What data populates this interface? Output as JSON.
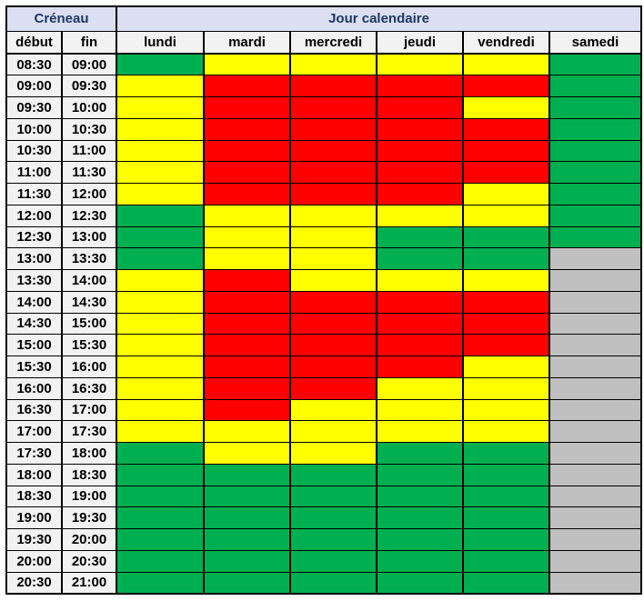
{
  "header": {
    "creneau": "Créneau",
    "jour_calendaire": "Jour calendaire",
    "debut": "début",
    "fin": "fin",
    "days": [
      "lundi",
      "mardi",
      "mercredi",
      "jeudi",
      "vendredi",
      "samedi"
    ]
  },
  "legend_colors": {
    "green": "#00B050",
    "yellow": "#FFFF00",
    "red": "#FF0000",
    "gray": "#C0C0C0"
  },
  "ui_colors": {
    "header_bg": "#DBDFF1",
    "header_text": "#1F3864",
    "subheader_bg": "#F2F2F2",
    "time_bg": "#F2F2F2",
    "border": "#000000"
  },
  "rows": [
    {
      "start": "08:30",
      "end": "09:00",
      "days": [
        "green",
        "yellow",
        "yellow",
        "yellow",
        "yellow",
        "green"
      ]
    },
    {
      "start": "09:00",
      "end": "09:30",
      "days": [
        "yellow",
        "red",
        "red",
        "red",
        "red",
        "green"
      ]
    },
    {
      "start": "09:30",
      "end": "10:00",
      "days": [
        "yellow",
        "red",
        "red",
        "red",
        "yellow",
        "green"
      ]
    },
    {
      "start": "10:00",
      "end": "10:30",
      "days": [
        "yellow",
        "red",
        "red",
        "red",
        "red",
        "green"
      ]
    },
    {
      "start": "10:30",
      "end": "11:00",
      "days": [
        "yellow",
        "red",
        "red",
        "red",
        "red",
        "green"
      ]
    },
    {
      "start": "11:00",
      "end": "11:30",
      "days": [
        "yellow",
        "red",
        "red",
        "red",
        "red",
        "green"
      ]
    },
    {
      "start": "11:30",
      "end": "12:00",
      "days": [
        "yellow",
        "red",
        "red",
        "red",
        "yellow",
        "green"
      ]
    },
    {
      "start": "12:00",
      "end": "12:30",
      "days": [
        "green",
        "yellow",
        "yellow",
        "yellow",
        "yellow",
        "green"
      ]
    },
    {
      "start": "12:30",
      "end": "13:00",
      "days": [
        "green",
        "yellow",
        "yellow",
        "green",
        "green",
        "green"
      ]
    },
    {
      "start": "13:00",
      "end": "13:30",
      "days": [
        "green",
        "yellow",
        "yellow",
        "green",
        "green",
        "gray"
      ]
    },
    {
      "start": "13:30",
      "end": "14:00",
      "days": [
        "yellow",
        "red",
        "yellow",
        "yellow",
        "yellow",
        "gray"
      ]
    },
    {
      "start": "14:00",
      "end": "14:30",
      "days": [
        "yellow",
        "red",
        "red",
        "red",
        "red",
        "gray"
      ]
    },
    {
      "start": "14:30",
      "end": "15:00",
      "days": [
        "yellow",
        "red",
        "red",
        "red",
        "red",
        "gray"
      ]
    },
    {
      "start": "15:00",
      "end": "15:30",
      "days": [
        "yellow",
        "red",
        "red",
        "red",
        "red",
        "gray"
      ]
    },
    {
      "start": "15:30",
      "end": "16:00",
      "days": [
        "yellow",
        "red",
        "red",
        "red",
        "yellow",
        "gray"
      ]
    },
    {
      "start": "16:00",
      "end": "16:30",
      "days": [
        "yellow",
        "red",
        "red",
        "yellow",
        "yellow",
        "gray"
      ]
    },
    {
      "start": "16:30",
      "end": "17:00",
      "days": [
        "yellow",
        "red",
        "yellow",
        "yellow",
        "yellow",
        "gray"
      ]
    },
    {
      "start": "17:00",
      "end": "17:30",
      "days": [
        "yellow",
        "yellow",
        "yellow",
        "yellow",
        "yellow",
        "gray"
      ]
    },
    {
      "start": "17:30",
      "end": "18:00",
      "days": [
        "green",
        "yellow",
        "yellow",
        "green",
        "green",
        "gray"
      ]
    },
    {
      "start": "18:00",
      "end": "18:30",
      "days": [
        "green",
        "green",
        "green",
        "green",
        "green",
        "gray"
      ]
    },
    {
      "start": "18:30",
      "end": "19:00",
      "days": [
        "green",
        "green",
        "green",
        "green",
        "green",
        "gray"
      ]
    },
    {
      "start": "19:00",
      "end": "19:30",
      "days": [
        "green",
        "green",
        "green",
        "green",
        "green",
        "gray"
      ]
    },
    {
      "start": "19:30",
      "end": "20:00",
      "days": [
        "green",
        "green",
        "green",
        "green",
        "green",
        "gray"
      ]
    },
    {
      "start": "20:00",
      "end": "20:30",
      "days": [
        "green",
        "green",
        "green",
        "green",
        "green",
        "gray"
      ]
    },
    {
      "start": "20:30",
      "end": "21:00",
      "days": [
        "green",
        "green",
        "green",
        "green",
        "green",
        "gray"
      ]
    }
  ]
}
